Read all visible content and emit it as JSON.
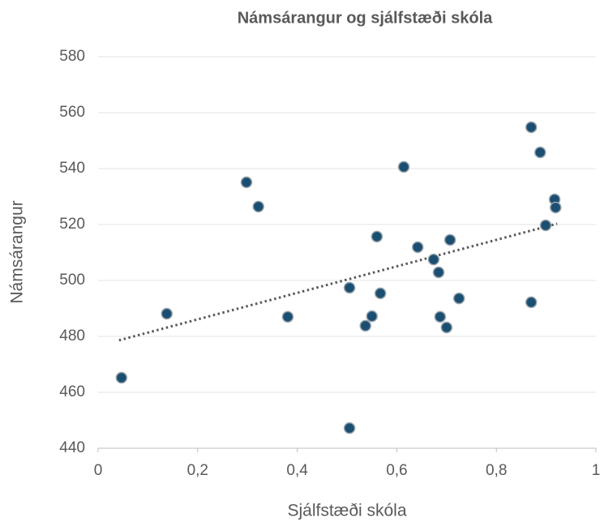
{
  "chart_data": {
    "type": "scatter",
    "title": "Námsárangur og sjálfstæði skóla",
    "xlabel": "Sjálfstæði skóla",
    "ylabel": "Námsárangur",
    "color": "#1b4f72",
    "x": [
      0.047,
      0.138,
      0.298,
      0.322,
      0.381,
      0.505,
      0.505,
      0.537,
      0.55,
      0.56,
      0.567,
      0.614,
      0.642,
      0.674,
      0.684,
      0.687,
      0.7,
      0.707,
      0.725,
      0.87,
      0.87,
      0.888,
      0.899,
      0.917,
      0.919
    ],
    "values": [
      465.2,
      488.1,
      535.1,
      526.4,
      487.0,
      497.4,
      447.2,
      483.8,
      487.2,
      515.7,
      495.4,
      540.6,
      511.9,
      507.5,
      502.9,
      487.0,
      483.2,
      514.5,
      493.6,
      554.8,
      492.2,
      545.8,
      519.7,
      529.0,
      526.1
    ],
    "trendline": {
      "x": [
        0.042,
        0.922
      ],
      "values": [
        478.6,
        520.3
      ],
      "color": "#595959"
    },
    "xlim": [
      0,
      1
    ],
    "xticks": [
      0,
      {
        "value": 0.2,
        "label": "0,2"
      },
      {
        "value": 0.4,
        "label": "0,4"
      },
      {
        "value": 0.6,
        "label": "0,6"
      },
      {
        "value": 0.8,
        "label": "0,8"
      },
      1
    ],
    "ylim": [
      440,
      580
    ],
    "yticks": [
      440,
      460,
      480,
      500,
      520,
      540,
      560,
      580
    ],
    "grid": true
  }
}
